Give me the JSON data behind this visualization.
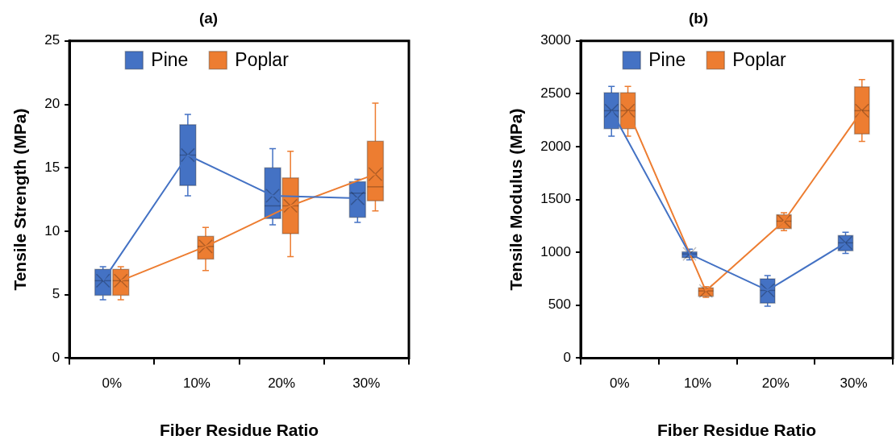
{
  "chart_data": [
    {
      "type": "box",
      "title": "(a)",
      "xlabel": "Fiber Residue Ratio",
      "ylabel": "Tensile Strength (MPa)",
      "categories": [
        "0%",
        "10%",
        "20%",
        "30%"
      ],
      "ylim": [
        0,
        25
      ],
      "yticks": [
        0,
        5,
        10,
        15,
        20,
        25
      ],
      "grid": false,
      "legend": "top",
      "series": [
        {
          "name": "Pine",
          "type": "box",
          "color": "#4472c4",
          "boxes": [
            {
              "low": 4.6,
              "q1": 4.95,
              "median": 6.1,
              "q3": 7.0,
              "high": 7.2,
              "mean": 6.1
            },
            {
              "low": 12.8,
              "q1": 13.6,
              "median": 16.0,
              "q3": 18.4,
              "high": 19.2,
              "mean": 16.0
            },
            {
              "low": 10.5,
              "q1": 11.0,
              "median": 12.0,
              "q3": 15.0,
              "high": 16.5,
              "mean": 12.8
            },
            {
              "low": 10.7,
              "q1": 11.1,
              "median": 13.0,
              "q3": 13.9,
              "high": 14.1,
              "mean": 12.6
            }
          ]
        },
        {
          "name": "Poplar",
          "type": "box",
          "color": "#ed7d31",
          "boxes": [
            {
              "low": 4.6,
              "q1": 4.95,
              "median": 6.1,
              "q3": 7.0,
              "high": 7.2,
              "mean": 6.1
            },
            {
              "low": 6.9,
              "q1": 7.8,
              "median": 8.8,
              "q3": 9.6,
              "high": 10.3,
              "mean": 8.8
            },
            {
              "low": 8.0,
              "q1": 9.8,
              "median": 12.0,
              "q3": 14.2,
              "high": 16.3,
              "mean": 12.0
            },
            {
              "low": 11.6,
              "q1": 12.4,
              "median": 13.5,
              "q3": 17.1,
              "high": 20.1,
              "mean": 14.5
            }
          ]
        },
        {
          "type": "line",
          "color": "#4472c4",
          "values": [
            6.1,
            16.0,
            12.8,
            12.6
          ]
        },
        {
          "type": "line",
          "color": "#ed7d31",
          "values": [
            6.1,
            8.8,
            12.0,
            14.5
          ]
        }
      ]
    },
    {
      "type": "box",
      "title": "(b)",
      "xlabel": "Fiber Residue Ratio",
      "ylabel": "Tensile Modulus (MPa)",
      "categories": [
        "0%",
        "10%",
        "20%",
        "30%"
      ],
      "ylim": [
        0,
        3000
      ],
      "yticks": [
        0,
        500,
        1000,
        1500,
        2000,
        2500,
        3000
      ],
      "grid": false,
      "legend": "top",
      "series": [
        {
          "name": "Pine",
          "type": "box",
          "color": "#4472c4",
          "boxes": [
            {
              "low": 2100,
              "q1": 2170,
              "median": 2340,
              "q3": 2510,
              "high": 2570,
              "mean": 2340
            },
            {
              "low": 930,
              "q1": 950,
              "median": 985,
              "q3": 1005,
              "high": 1030,
              "mean": 985
            },
            {
              "low": 490,
              "q1": 520,
              "median": 640,
              "q3": 750,
              "high": 780,
              "mean": 640
            },
            {
              "low": 990,
              "q1": 1015,
              "median": 1090,
              "q3": 1160,
              "high": 1190,
              "mean": 1090
            }
          ]
        },
        {
          "name": "Poplar",
          "type": "box",
          "color": "#ed7d31",
          "boxes": [
            {
              "low": 2100,
              "q1": 2170,
              "median": 2340,
              "q3": 2510,
              "high": 2570,
              "mean": 2340
            },
            {
              "low": 575,
              "q1": 585,
              "median": 635,
              "q3": 665,
              "high": 675,
              "mean": 635
            },
            {
              "low": 1205,
              "q1": 1225,
              "median": 1295,
              "q3": 1355,
              "high": 1375,
              "mean": 1295
            },
            {
              "low": 2050,
              "q1": 2120,
              "median": 2340,
              "q3": 2565,
              "high": 2635,
              "mean": 2340
            }
          ]
        },
        {
          "type": "line",
          "color": "#4472c4",
          "values": [
            2340,
            985,
            640,
            1090
          ]
        },
        {
          "type": "line",
          "color": "#ed7d31",
          "values": [
            2340,
            635,
            1295,
            2340
          ]
        }
      ]
    }
  ]
}
